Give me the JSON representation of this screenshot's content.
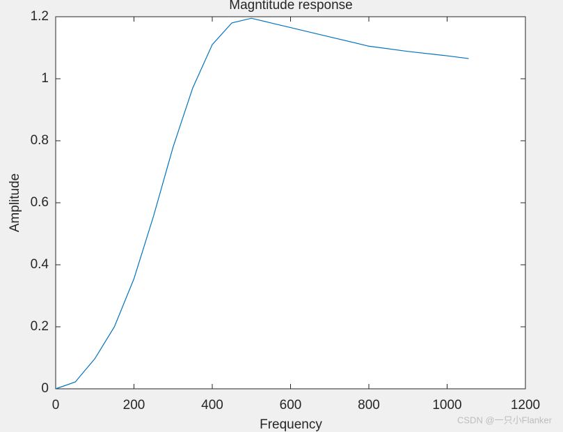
{
  "chart_data": {
    "type": "line",
    "title": "Magntitude response",
    "x_label": "Frequency",
    "y_label": "Amplitude",
    "x": [
      0,
      50,
      100,
      150,
      200,
      250,
      300,
      350,
      400,
      450,
      500,
      550,
      600,
      700,
      800,
      900,
      1000,
      1055
    ],
    "series": [
      {
        "name": "Amplitude",
        "color": "#0072bd",
        "values": [
          0,
          0.022,
          0.097,
          0.2,
          0.355,
          0.557,
          0.78,
          0.97,
          1.11,
          1.18,
          1.195,
          1.18,
          1.165,
          1.135,
          1.105,
          1.088,
          1.074,
          1.065
        ]
      }
    ],
    "xlim": [
      0,
      1200
    ],
    "xticks": [
      0,
      200,
      400,
      600,
      800,
      1000,
      1200
    ],
    "ylim": [
      0,
      1.2
    ],
    "yticks": [
      0,
      0.2,
      0.4,
      0.6,
      0.8,
      1,
      1.2
    ],
    "grid": false,
    "watermark": "CSDN @一只小Flanker"
  }
}
